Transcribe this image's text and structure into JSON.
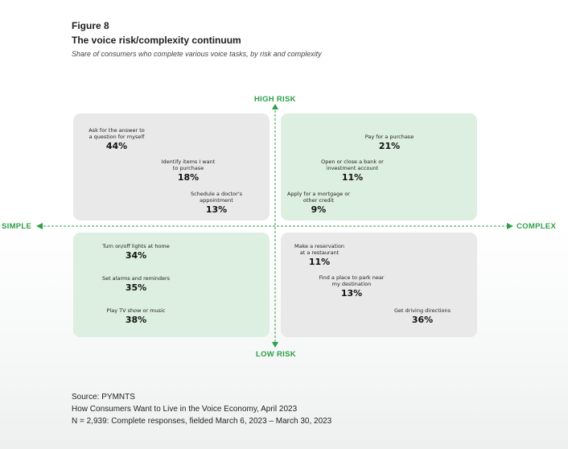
{
  "figure": {
    "label": "Figure 8",
    "title": "The voice risk/complexity continuum",
    "subtitle": "Share of consumers who complete various voice tasks, by risk and complexity"
  },
  "axes": {
    "top": "HIGH RISK",
    "bottom": "LOW RISK",
    "left": "SIMPLE",
    "right": "COMPLEX",
    "color": "#2e9e48"
  },
  "quadrants": {
    "high_simple": {
      "fill": "#e9e9e9",
      "items": [
        {
          "lines": [
            "Ask for the answer to",
            "a question for myself"
          ],
          "value": "44%"
        },
        {
          "lines": [
            "Identify items I want",
            "to purchase"
          ],
          "value": "18%"
        },
        {
          "lines": [
            "Schedule a doctor's",
            "appointment"
          ],
          "value": "13%"
        }
      ]
    },
    "high_complex": {
      "fill": "#ddefe0",
      "items": [
        {
          "lines": [
            "Pay for a purchase"
          ],
          "value": "21%"
        },
        {
          "lines": [
            "Open or close a bank or",
            "investment account"
          ],
          "value": "11%"
        },
        {
          "lines": [
            "Apply for a mortgage or",
            "other credit"
          ],
          "value": "9%"
        }
      ]
    },
    "low_simple": {
      "fill": "#ddefe0",
      "items": [
        {
          "lines": [
            "Turn on/off lights at home"
          ],
          "value": "34%"
        },
        {
          "lines": [
            "Set alarms and reminders"
          ],
          "value": "35%"
        },
        {
          "lines": [
            "Play TV show or music"
          ],
          "value": "38%"
        }
      ]
    },
    "low_complex": {
      "fill": "#e9e9e9",
      "items": [
        {
          "lines": [
            "Make a reservation",
            "at a restaurant"
          ],
          "value": "11%"
        },
        {
          "lines": [
            "Find a place to park near",
            "my destination"
          ],
          "value": "13%"
        },
        {
          "lines": [
            "Get driving directions"
          ],
          "value": "36%"
        }
      ]
    }
  },
  "source": {
    "line1": "Source: PYMNTS",
    "line2": "How Consumers Want to Live in the Voice Economy, April 2023",
    "line3": "N = 2,939: Complete responses, fielded March 6, 2023 – March 30, 2023"
  }
}
